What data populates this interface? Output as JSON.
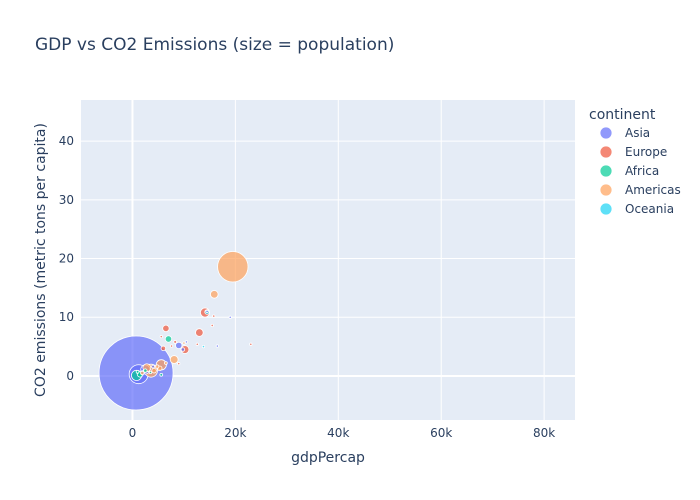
{
  "chart_data": {
    "type": "scatter",
    "title": "GDP vs CO2 Emissions (size = population)",
    "xlabel": "gdpPercap",
    "ylabel": "CO2 emissions (metric tons per capita)",
    "xlim": [
      -10000,
      86000
    ],
    "ylim": [
      -7.5,
      47
    ],
    "xticks": [
      0,
      20000,
      40000,
      60000,
      80000
    ],
    "xtick_labels": [
      "0",
      "20k",
      "40k",
      "60k",
      "80k"
    ],
    "yticks": [
      0,
      10,
      20,
      30,
      40
    ],
    "ytick_labels": [
      "0",
      "10",
      "20",
      "30",
      "40"
    ],
    "grid": true,
    "legend_title": "continent",
    "legend_position": "right",
    "plot_bg": "#e5ecf6",
    "series": [
      {
        "name": "Asia",
        "color": "#636efa",
        "points": [
          {
            "x": 700,
            "y": 0.5,
            "pop": 1300
          },
          {
            "x": 1200,
            "y": 0.3,
            "pop": 85
          },
          {
            "x": 2500,
            "y": 1.1,
            "pop": 20
          },
          {
            "x": 9000,
            "y": 5.2,
            "pop": 10
          },
          {
            "x": 10500,
            "y": 5.8,
            "pop": 1
          },
          {
            "x": 16500,
            "y": 5.1,
            "pop": 0.5
          },
          {
            "x": 19000,
            "y": 10.0,
            "pop": 0.2
          },
          {
            "x": 14500,
            "y": 11.0,
            "pop": 1
          },
          {
            "x": 9800,
            "y": 4.5,
            "pop": 3
          },
          {
            "x": 4000,
            "y": 1.6,
            "pop": 2
          },
          {
            "x": 2000,
            "y": 0.6,
            "pop": 3
          }
        ]
      },
      {
        "name": "Europe",
        "color": "#ef553b",
        "points": [
          {
            "x": 6500,
            "y": 8.1,
            "pop": 10
          },
          {
            "x": 10200,
            "y": 4.5,
            "pop": 15
          },
          {
            "x": 13000,
            "y": 7.4,
            "pop": 14
          },
          {
            "x": 14100,
            "y": 10.8,
            "pop": 20
          },
          {
            "x": 23000,
            "y": 5.4,
            "pop": 1
          },
          {
            "x": 15500,
            "y": 8.6,
            "pop": 1
          },
          {
            "x": 15800,
            "y": 10.2,
            "pop": 0.5
          },
          {
            "x": 6000,
            "y": 4.7,
            "pop": 5
          },
          {
            "x": 8300,
            "y": 5.8,
            "pop": 2
          },
          {
            "x": 12600,
            "y": 5.4,
            "pop": 1
          },
          {
            "x": 5600,
            "y": 6.7,
            "pop": 1
          },
          {
            "x": 7600,
            "y": 5.1,
            "pop": 1
          },
          {
            "x": 9000,
            "y": 2.1,
            "pop": 1
          }
        ]
      },
      {
        "name": "Africa",
        "color": "#00cc96",
        "points": [
          {
            "x": 800,
            "y": 0.1,
            "pop": 25
          },
          {
            "x": 1500,
            "y": 0.3,
            "pop": 8
          },
          {
            "x": 7000,
            "y": 6.3,
            "pop": 10
          },
          {
            "x": 5600,
            "y": 0.2,
            "pop": 2
          },
          {
            "x": 2500,
            "y": 0.9,
            "pop": 3
          },
          {
            "x": 1000,
            "y": 0.7,
            "pop": 2
          },
          {
            "x": 3500,
            "y": 0.6,
            "pop": 1
          }
        ]
      },
      {
        "name": "Americas",
        "color": "#ffa15a",
        "points": [
          {
            "x": 19500,
            "y": 18.6,
            "pop": 220
          },
          {
            "x": 15900,
            "y": 13.9,
            "pop": 14
          },
          {
            "x": 3600,
            "y": 0.9,
            "pop": 40
          },
          {
            "x": 2800,
            "y": 1.4,
            "pop": 15
          },
          {
            "x": 5600,
            "y": 1.9,
            "pop": 25
          },
          {
            "x": 8100,
            "y": 2.8,
            "pop": 15
          },
          {
            "x": 5300,
            "y": 1.3,
            "pop": 5
          },
          {
            "x": 4200,
            "y": 0.9,
            "pop": 5
          },
          {
            "x": 4800,
            "y": 1.6,
            "pop": 3
          },
          {
            "x": 1900,
            "y": 0.5,
            "pop": 3
          },
          {
            "x": 6500,
            "y": 2.2,
            "pop": 2
          },
          {
            "x": 10000,
            "y": 5.6,
            "pop": 1
          }
        ]
      },
      {
        "name": "Oceania",
        "color": "#19d3f3",
        "points": [
          {
            "x": 14500,
            "y": 10.9,
            "pop": 5
          },
          {
            "x": 13800,
            "y": 5.0,
            "pop": 0.6
          }
        ]
      }
    ]
  }
}
